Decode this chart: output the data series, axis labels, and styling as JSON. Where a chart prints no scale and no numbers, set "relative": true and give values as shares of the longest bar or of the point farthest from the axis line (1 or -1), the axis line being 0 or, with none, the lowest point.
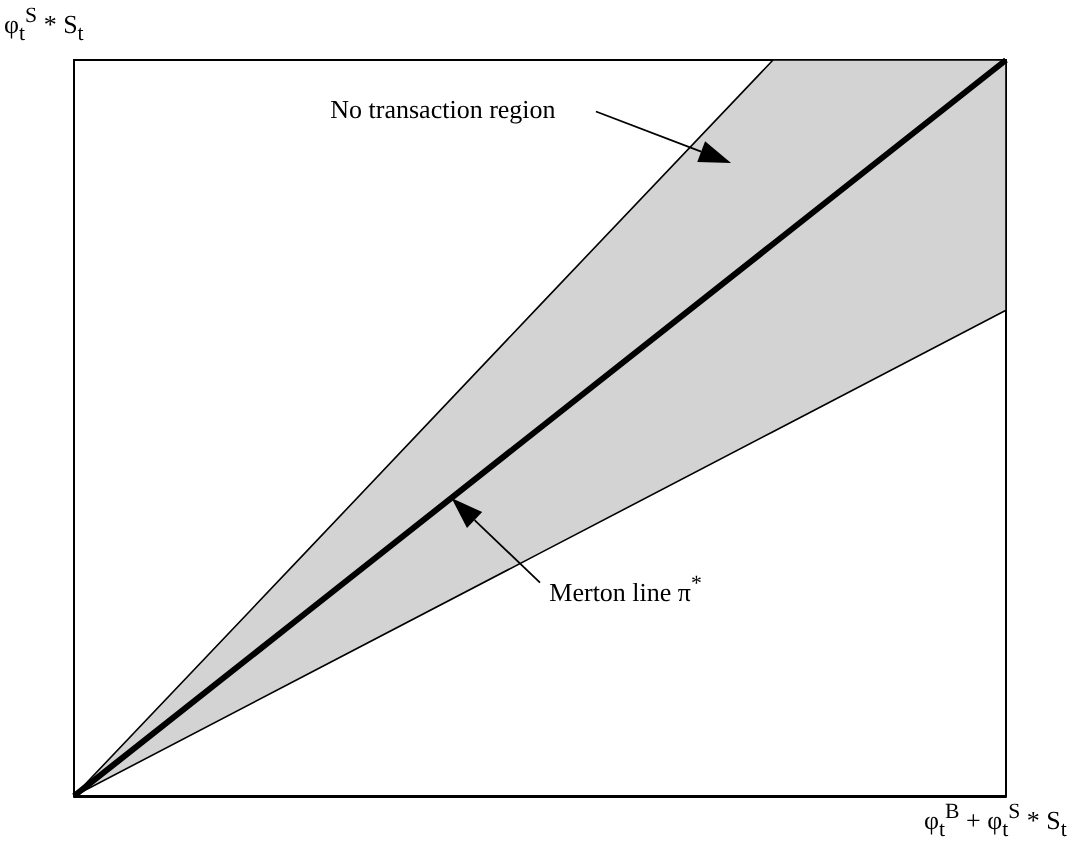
{
  "chart_data": {
    "type": "line",
    "relative": true,
    "categories": [
      null,
      null,
      null,
      null,
      null
    ],
    "xlabel": "φ$_{t}$$^{B}$ + φ$_{t}$$^{S}$ * S$_{t}$",
    "ylabel": "φ$_{t}$$^{S}$ * S$_{t}$",
    "series": [
      {
        "color": "#000000",
        "values": [
          0,
          0.25,
          0.5,
          0.75,
          1
        ],
        "lower": [
          0,
          0.165,
          0.33,
          0.495,
          0.66
        ],
        "upper": [
          0,
          0.333,
          0.667,
          1,
          1
        ]
      }
    ],
    "annotations": [
      "No transaction region",
      "Merton line π$^{*}$"
    ],
    "marker": "none"
  }
}
